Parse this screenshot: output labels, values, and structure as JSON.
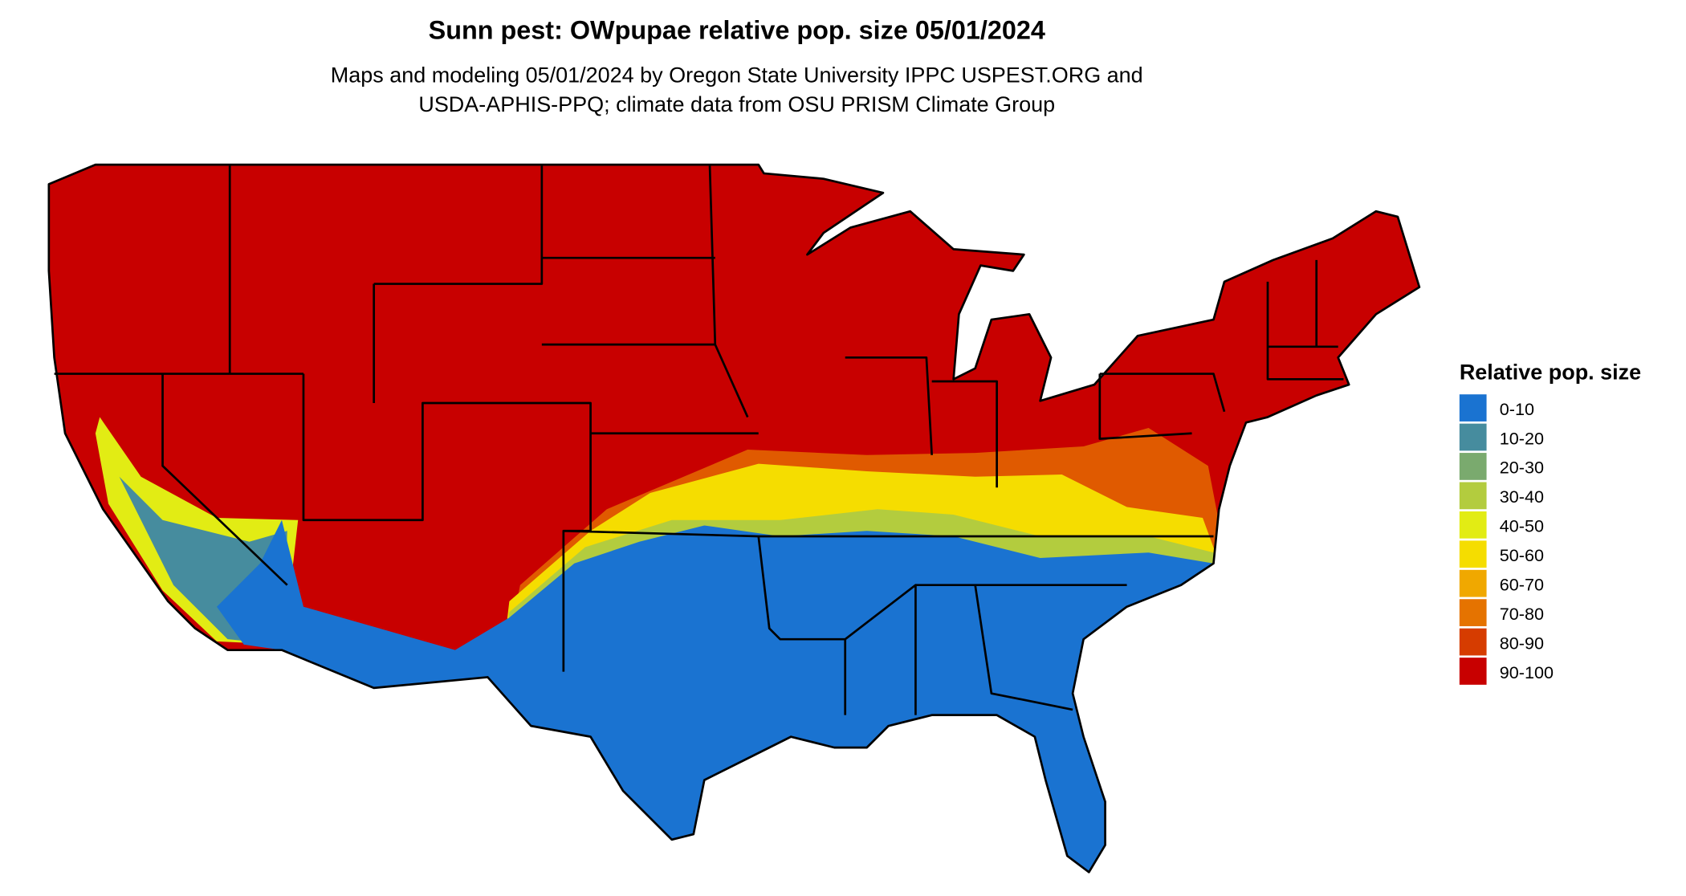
{
  "title": "Sunn pest: OWpupae relative pop. size 05/01/2024",
  "subtitle": [
    "Maps and modeling 05/01/2024 by Oregon State University IPPC USPEST.ORG and",
    "USDA-APHIS-PPQ; climate data from OSU PRISM Climate Group"
  ],
  "legend": {
    "title": "Relative pop. size",
    "items": [
      {
        "label": "0-10",
        "color": "#1a73d1"
      },
      {
        "label": "10-20",
        "color": "#468c9e"
      },
      {
        "label": "20-30",
        "color": "#7aaa6e"
      },
      {
        "label": "30-40",
        "color": "#b3cc3e"
      },
      {
        "label": "40-50",
        "color": "#e2ec14"
      },
      {
        "label": "50-60",
        "color": "#f5dd00"
      },
      {
        "label": "60-70",
        "color": "#f0a800"
      },
      {
        "label": "70-80",
        "color": "#e57300"
      },
      {
        "label": "80-90",
        "color": "#d63c00"
      },
      {
        "label": "90-100",
        "color": "#c80000"
      }
    ]
  }
}
